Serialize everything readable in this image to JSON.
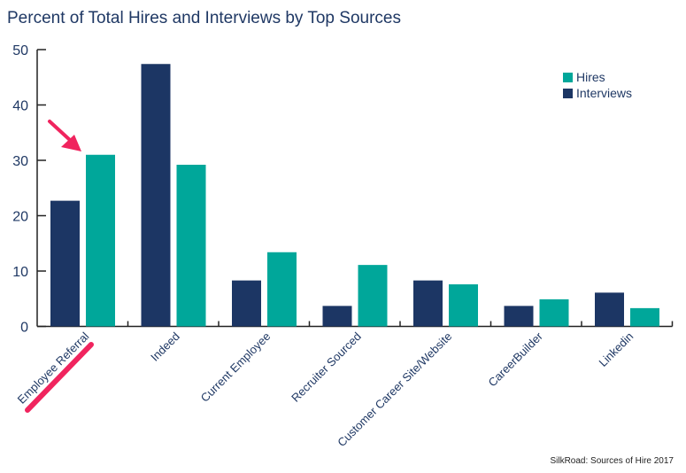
{
  "chart_data": {
    "type": "bar",
    "title": "Percent of Total Hires and Interviews by Top Sources",
    "categories": [
      "Employee Referral",
      "Indeed",
      "Current Employee",
      "Recruiter Sourced",
      "Customer Career Site/Website",
      "CareerBuilder",
      "Linkedin"
    ],
    "series": [
      {
        "name": "Interviews",
        "color": "#1c3664",
        "values": [
          22.7,
          47.4,
          8.3,
          3.7,
          8.3,
          3.7,
          6.1
        ]
      },
      {
        "name": "Hires",
        "color": "#00a79a",
        "values": [
          31.0,
          29.2,
          13.4,
          11.1,
          7.6,
          4.9,
          3.3
        ]
      }
    ],
    "legend_order": [
      "Hires",
      "Interviews"
    ],
    "legend_position": "top-right",
    "ylim": [
      0,
      50
    ],
    "yticks": [
      0,
      10,
      20,
      30,
      40,
      50
    ],
    "grid": false,
    "annotation": "arrow and underline highlighting Employee Referral hires",
    "annotation_color": "#f0245e",
    "source": "SilkRoad: Sources of Hire 2017"
  }
}
